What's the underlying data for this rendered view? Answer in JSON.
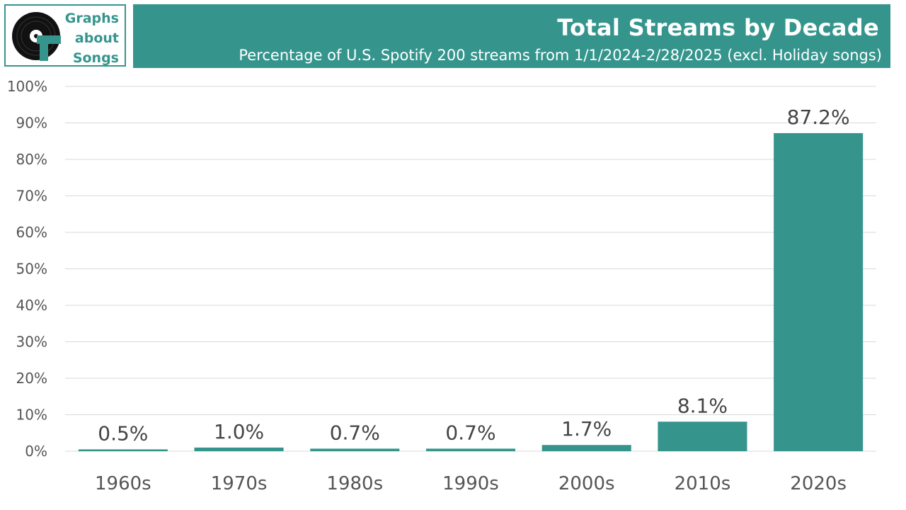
{
  "logo": {
    "line1": "Graphs",
    "line2": "about",
    "line3": "Songs"
  },
  "colors": {
    "accent": "#35958d",
    "gridline": "#d9d9d9",
    "text": "#555555"
  },
  "chart_data": {
    "type": "bar",
    "title": "Total Streams by Decade",
    "subtitle": "Percentage of U.S. Spotify 200 streams from 1/1/2024-2/28/2025 (excl. Holiday songs)",
    "categories": [
      "1960s",
      "1970s",
      "1980s",
      "1990s",
      "2000s",
      "2010s",
      "2020s"
    ],
    "values": [
      0.5,
      1.0,
      0.7,
      0.7,
      1.7,
      8.1,
      87.2
    ],
    "value_labels": [
      "0.5%",
      "1.0%",
      "0.7%",
      "0.7%",
      "1.7%",
      "8.1%",
      "87.2%"
    ],
    "yticks": [
      "0%",
      "10%",
      "20%",
      "30%",
      "40%",
      "50%",
      "60%",
      "70%",
      "80%",
      "90%",
      "100%"
    ],
    "ytick_values": [
      0,
      10,
      20,
      30,
      40,
      50,
      60,
      70,
      80,
      90,
      100
    ],
    "ylim": [
      0,
      100
    ],
    "grid": true,
    "legend": "none"
  }
}
